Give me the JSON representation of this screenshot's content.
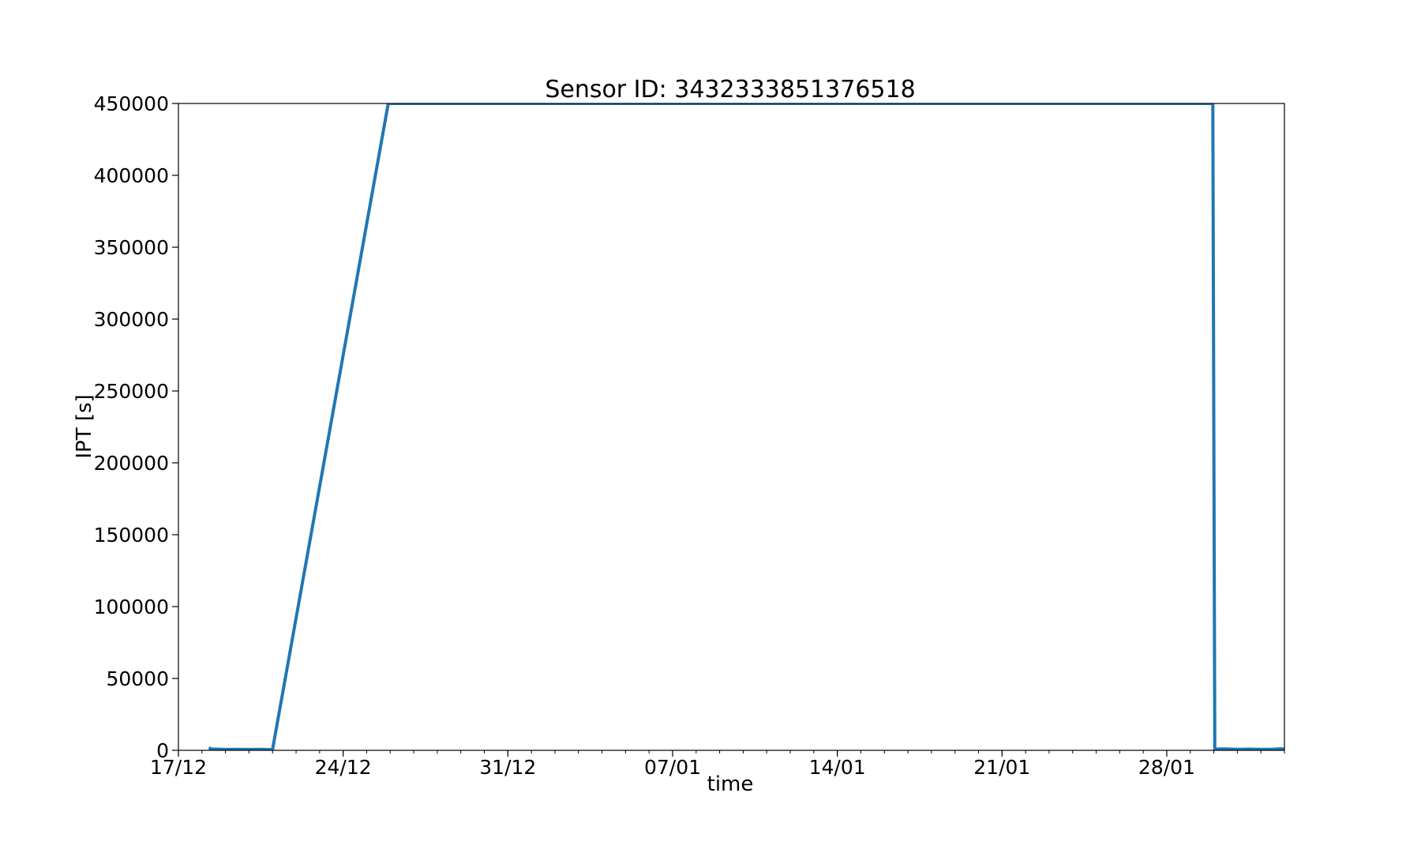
{
  "chart_data": {
    "type": "line",
    "title": "Sensor ID: 3432333851376518",
    "xlabel": "time",
    "ylabel": "IPT [s]",
    "xlim": [
      "2019-12-17",
      "2020-02-02"
    ],
    "ylim": [
      0,
      450000
    ],
    "x_ticks": [
      {
        "date": "2019-12-17",
        "label": "17/12"
      },
      {
        "date": "2019-12-24",
        "label": "24/12"
      },
      {
        "date": "2019-12-31",
        "label": "31/12"
      },
      {
        "date": "2020-01-07",
        "label": "07/01"
      },
      {
        "date": "2020-01-14",
        "label": "14/01"
      },
      {
        "date": "2020-01-21",
        "label": "21/01"
      },
      {
        "date": "2020-01-28",
        "label": "28/01"
      }
    ],
    "y_ticks": [
      0,
      50000,
      100000,
      150000,
      200000,
      250000,
      300000,
      350000,
      400000,
      450000
    ],
    "y_tick_labels": [
      "0",
      "50000",
      "100000",
      "150000",
      "200000",
      "250000",
      "300000",
      "350000",
      "400000",
      "450000"
    ],
    "grid": false,
    "series": [
      {
        "color": "#1f77b4",
        "points": [
          {
            "x": "2019-12-18 07:00",
            "y": 1800
          },
          {
            "x": "2019-12-18 10:00",
            "y": 900
          },
          {
            "x": "2019-12-19 00:00",
            "y": 600
          },
          {
            "x": "2019-12-19 12:00",
            "y": 700
          },
          {
            "x": "2019-12-20 00:00",
            "y": 600
          },
          {
            "x": "2019-12-20 12:00",
            "y": 650
          },
          {
            "x": "2019-12-21 00:00",
            "y": 500
          },
          {
            "x": "2019-12-25 22:00",
            "y": 450000
          },
          {
            "x": "2020-01-29 23:00",
            "y": 450000
          },
          {
            "x": "2020-01-30 01:00",
            "y": 900
          },
          {
            "x": "2020-01-30 12:00",
            "y": 1000
          },
          {
            "x": "2020-01-31 00:00",
            "y": 700
          },
          {
            "x": "2020-01-31 12:00",
            "y": 800
          },
          {
            "x": "2020-02-01 00:00",
            "y": 700
          },
          {
            "x": "2020-02-01 12:00",
            "y": 700
          },
          {
            "x": "2020-02-01 20:00",
            "y": 1100
          },
          {
            "x": "2020-02-02 00:00",
            "y": 700
          }
        ]
      }
    ]
  }
}
